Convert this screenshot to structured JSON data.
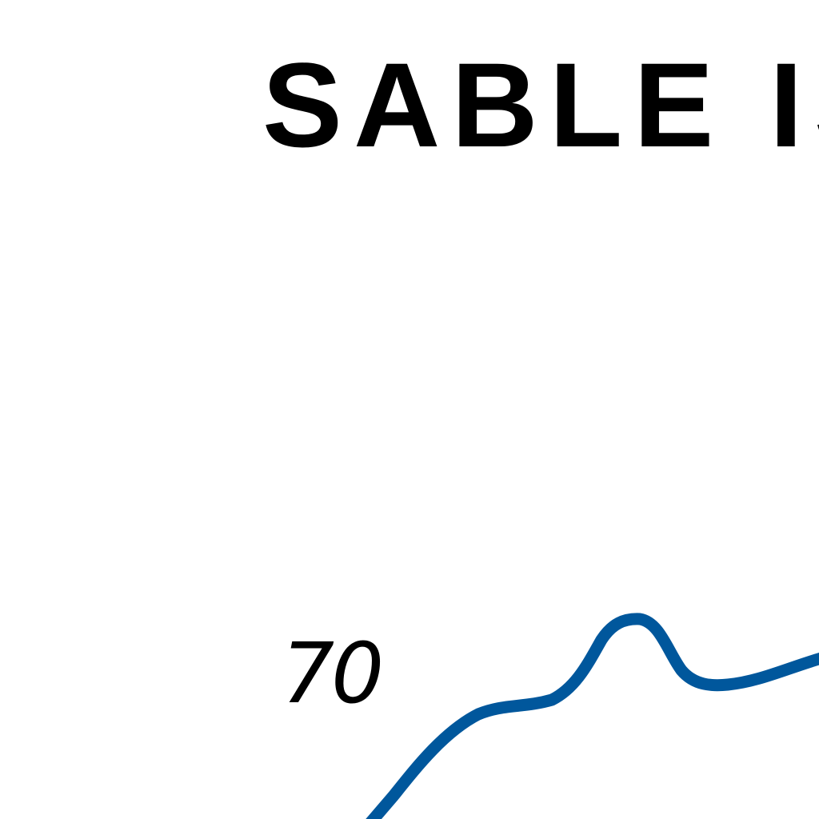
{
  "map": {
    "title": "SABLE IS",
    "contour_label": "70",
    "contour_color": "#00579c"
  }
}
